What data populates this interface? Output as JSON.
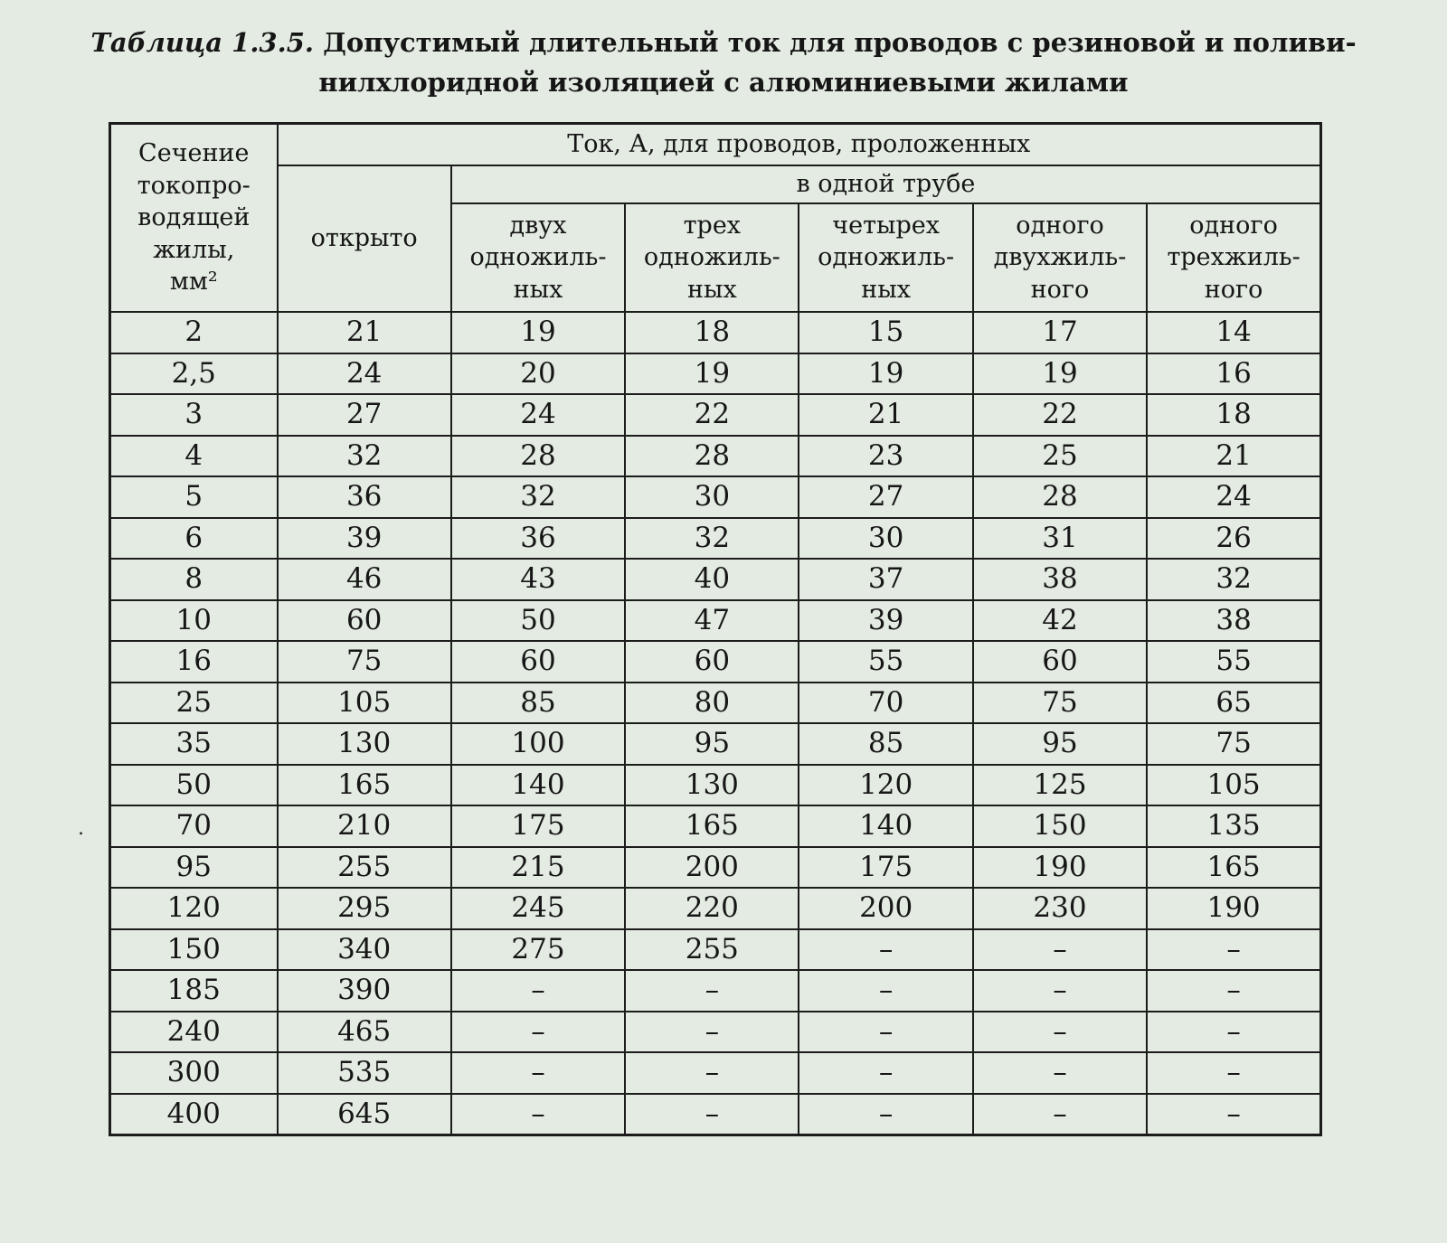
{
  "page": {
    "title_label": "Таблица 1.3.5.",
    "title_text": "Допустимый длительный ток для проводов с резиновой и поливи-\nнилхлоридной изоляцией с алюминиевыми жилами"
  },
  "table": {
    "header": {
      "cross_section": "Сечение\nтокопро-\nводящей\nжилы,\nмм²",
      "current_main": "Ток, А, для проводов, проложенных",
      "open": "открыто",
      "one_pipe": "в одной трубе",
      "sub": [
        "двух\nодножиль-\nных",
        "трех\nодножиль-\nных",
        "четырех\nодножиль-\nных",
        "одного\nдвухжиль-\nного",
        "одного\nтрехжиль-\nного"
      ]
    },
    "rows": [
      [
        "2",
        "21",
        "19",
        "18",
        "15",
        "17",
        "14"
      ],
      [
        "2,5",
        "24",
        "20",
        "19",
        "19",
        "19",
        "16"
      ],
      [
        "3",
        "27",
        "24",
        "22",
        "21",
        "22",
        "18"
      ],
      [
        "4",
        "32",
        "28",
        "28",
        "23",
        "25",
        "21"
      ],
      [
        "5",
        "36",
        "32",
        "30",
        "27",
        "28",
        "24"
      ],
      [
        "6",
        "39",
        "36",
        "32",
        "30",
        "31",
        "26"
      ],
      [
        "8",
        "46",
        "43",
        "40",
        "37",
        "38",
        "32"
      ],
      [
        "10",
        "60",
        "50",
        "47",
        "39",
        "42",
        "38"
      ],
      [
        "16",
        "75",
        "60",
        "60",
        "55",
        "60",
        "55"
      ],
      [
        "25",
        "105",
        "85",
        "80",
        "70",
        "75",
        "65"
      ],
      [
        "35",
        "130",
        "100",
        "95",
        "85",
        "95",
        "75"
      ],
      [
        "50",
        "165",
        "140",
        "130",
        "120",
        "125",
        "105"
      ],
      [
        "70",
        "210",
        "175",
        "165",
        "140",
        "150",
        "135"
      ],
      [
        "95",
        "255",
        "215",
        "200",
        "175",
        "190",
        "165"
      ],
      [
        "120",
        "295",
        "245",
        "220",
        "200",
        "230",
        "190"
      ],
      [
        "150",
        "340",
        "275",
        "255",
        "–",
        "–",
        "–"
      ],
      [
        "185",
        "390",
        "–",
        "–",
        "–",
        "–",
        "–"
      ],
      [
        "240",
        "465",
        "–",
        "–",
        "–",
        "–",
        "–"
      ],
      [
        "300",
        "535",
        "–",
        "–",
        "–",
        "–",
        "–"
      ],
      [
        "400",
        "645",
        "–",
        "–",
        "–",
        "–",
        "–"
      ]
    ],
    "artifact_dot": "."
  }
}
